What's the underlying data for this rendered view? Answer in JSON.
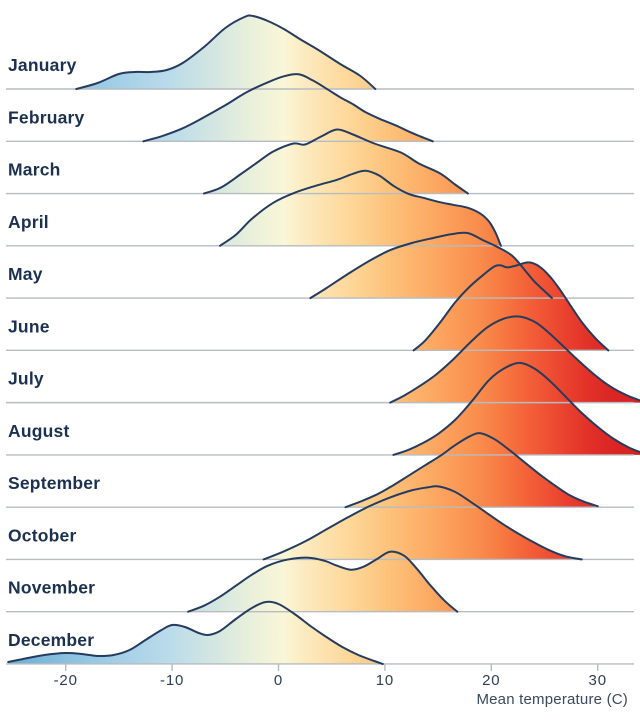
{
  "chart_data": {
    "type": "ridgeline",
    "title": "",
    "xlabel": "Mean temperature (C)",
    "x_domain": [
      -26,
      34
    ],
    "x_ticks": [
      -20,
      -10,
      0,
      10,
      20,
      30
    ],
    "grid": "one horizontal baseline per month, light gray",
    "legend": "none",
    "categories": [
      "January",
      "February",
      "March",
      "April",
      "May",
      "June",
      "July",
      "August",
      "September",
      "October",
      "November",
      "December"
    ],
    "value_note": "points are [temperature_C, density_height] pairs read off the chart; height in screen px above each month baseline (row spacing = 52)",
    "series": [
      {
        "name": "January",
        "points": [
          [
            -19,
            0
          ],
          [
            -17,
            6
          ],
          [
            -15,
            15
          ],
          [
            -13.5,
            17
          ],
          [
            -12,
            17
          ],
          [
            -10.5,
            19
          ],
          [
            -9,
            26
          ],
          [
            -7,
            42
          ],
          [
            -5,
            61
          ],
          [
            -3.2,
            72
          ],
          [
            -2.4,
            73
          ],
          [
            -1,
            68
          ],
          [
            0.5,
            60
          ],
          [
            2,
            50
          ],
          [
            3.9,
            38
          ],
          [
            5.8,
            25
          ],
          [
            7.7,
            13
          ],
          [
            9.1,
            0
          ]
        ]
      },
      {
        "name": "February",
        "points": [
          [
            -12.7,
            0
          ],
          [
            -11,
            5
          ],
          [
            -9,
            13
          ],
          [
            -7,
            24
          ],
          [
            -5,
            36
          ],
          [
            -3,
            49
          ],
          [
            -1,
            59
          ],
          [
            0.5,
            65
          ],
          [
            1.9,
            67
          ],
          [
            3.2,
            61
          ],
          [
            4.6,
            52
          ],
          [
            5.8,
            44
          ],
          [
            7,
            37
          ],
          [
            8.2,
            29
          ],
          [
            9.6,
            22
          ],
          [
            11,
            16
          ],
          [
            12.2,
            10
          ],
          [
            13.3,
            5
          ],
          [
            14.5,
            0
          ]
        ]
      },
      {
        "name": "March",
        "points": [
          [
            -7,
            0
          ],
          [
            -5.4,
            6
          ],
          [
            -3.6,
            19
          ],
          [
            -2,
            31
          ],
          [
            -0.5,
            42
          ],
          [
            1.4,
            50
          ],
          [
            2.5,
            49
          ],
          [
            4,
            57
          ],
          [
            5.5,
            64
          ],
          [
            7,
            59
          ],
          [
            9,
            50
          ],
          [
            11.5,
            41
          ],
          [
            13.2,
            30
          ],
          [
            15.2,
            20
          ],
          [
            16.6,
            9
          ],
          [
            17.8,
            0
          ]
        ]
      },
      {
        "name": "April",
        "points": [
          [
            -5.5,
            0
          ],
          [
            -4,
            11
          ],
          [
            -2.5,
            27
          ],
          [
            -0.5,
            43
          ],
          [
            1.5,
            53
          ],
          [
            3.5,
            60
          ],
          [
            5.5,
            66
          ],
          [
            7,
            72
          ],
          [
            8.2,
            75
          ],
          [
            9.5,
            70
          ],
          [
            10.8,
            60
          ],
          [
            12.2,
            52
          ],
          [
            13.6,
            48
          ],
          [
            15,
            44
          ],
          [
            16.4,
            41
          ],
          [
            17.8,
            38
          ],
          [
            19,
            32
          ],
          [
            19.8,
            24
          ],
          [
            20.4,
            13
          ],
          [
            20.9,
            0
          ]
        ]
      },
      {
        "name": "May",
        "points": [
          [
            3,
            0
          ],
          [
            4.5,
            10
          ],
          [
            6.5,
            24
          ],
          [
            8.5,
            37
          ],
          [
            10.5,
            48
          ],
          [
            12.5,
            55
          ],
          [
            14.5,
            60
          ],
          [
            16.3,
            64
          ],
          [
            17.8,
            65
          ],
          [
            19.2,
            58
          ],
          [
            20.6,
            51
          ],
          [
            22,
            42
          ],
          [
            23.3,
            26
          ],
          [
            24.1,
            16
          ],
          [
            25,
            7
          ],
          [
            25.7,
            0
          ]
        ]
      },
      {
        "name": "June",
        "points": [
          [
            12.7,
            0
          ],
          [
            13.8,
            10
          ],
          [
            15.2,
            28
          ],
          [
            16.6,
            48
          ],
          [
            18,
            64
          ],
          [
            19.3,
            76
          ],
          [
            20.3,
            84
          ],
          [
            20.9,
            85
          ],
          [
            21.5,
            83
          ],
          [
            22.4,
            85
          ],
          [
            23.5,
            88
          ],
          [
            24.5,
            84
          ],
          [
            25.5,
            74
          ],
          [
            26.5,
            60
          ],
          [
            27.5,
            44
          ],
          [
            28.6,
            27
          ],
          [
            29.8,
            12
          ],
          [
            31,
            0
          ]
        ]
      },
      {
        "name": "July",
        "points": [
          [
            10.5,
            0
          ],
          [
            11.8,
            7
          ],
          [
            13.2,
            16
          ],
          [
            14.8,
            28
          ],
          [
            16.4,
            43
          ],
          [
            18,
            60
          ],
          [
            19.6,
            75
          ],
          [
            21.2,
            84
          ],
          [
            22.7,
            86
          ],
          [
            24.2,
            80
          ],
          [
            25.6,
            68
          ],
          [
            27,
            54
          ],
          [
            28.4,
            40
          ],
          [
            29.8,
            27
          ],
          [
            31.2,
            16
          ],
          [
            32.6,
            8
          ],
          [
            34,
            2
          ]
        ]
      },
      {
        "name": "August",
        "points": [
          [
            10.8,
            0
          ],
          [
            12.2,
            5
          ],
          [
            13.6,
            12
          ],
          [
            15,
            21
          ],
          [
            16.6,
            35
          ],
          [
            18.2,
            54
          ],
          [
            19.8,
            75
          ],
          [
            21.3,
            87
          ],
          [
            22.7,
            92
          ],
          [
            24.1,
            86
          ],
          [
            25.5,
            74
          ],
          [
            27,
            58
          ],
          [
            28.5,
            42
          ],
          [
            30,
            28
          ],
          [
            31.5,
            16
          ],
          [
            33,
            7
          ],
          [
            34.2,
            2
          ]
        ]
      },
      {
        "name": "September",
        "points": [
          [
            6.3,
            0
          ],
          [
            7.8,
            6
          ],
          [
            9.3,
            13
          ],
          [
            10.8,
            22
          ],
          [
            12.3,
            32
          ],
          [
            13.8,
            42
          ],
          [
            15.3,
            52
          ],
          [
            16.6,
            62
          ],
          [
            18,
            71
          ],
          [
            19,
            74
          ],
          [
            20.3,
            68
          ],
          [
            21.6,
            58
          ],
          [
            23,
            46
          ],
          [
            24.4,
            34
          ],
          [
            25.8,
            23
          ],
          [
            27.2,
            13
          ],
          [
            28.6,
            6
          ],
          [
            30,
            1
          ]
        ]
      },
      {
        "name": "October",
        "points": [
          [
            -1.4,
            0
          ],
          [
            0.5,
            8
          ],
          [
            2.5,
            18
          ],
          [
            4.5,
            30
          ],
          [
            6.5,
            42
          ],
          [
            8.5,
            53
          ],
          [
            10.5,
            62
          ],
          [
            12.5,
            69
          ],
          [
            14,
            72
          ],
          [
            15,
            73
          ],
          [
            16.5,
            68
          ],
          [
            18,
            58
          ],
          [
            19.5,
            47
          ],
          [
            21,
            36
          ],
          [
            22.5,
            26
          ],
          [
            24,
            17
          ],
          [
            25.5,
            9
          ],
          [
            27,
            3
          ],
          [
            28.5,
            0
          ]
        ]
      },
      {
        "name": "November",
        "points": [
          [
            -8.5,
            0
          ],
          [
            -7,
            6
          ],
          [
            -5.5,
            15
          ],
          [
            -4,
            26
          ],
          [
            -2.5,
            37
          ],
          [
            -1,
            46
          ],
          [
            0.8,
            52
          ],
          [
            2.8,
            54
          ],
          [
            4.3,
            51
          ],
          [
            5.5,
            46
          ],
          [
            6.8,
            42
          ],
          [
            8,
            45
          ],
          [
            9.3,
            53
          ],
          [
            10.5,
            60
          ],
          [
            11.8,
            56
          ],
          [
            13,
            43
          ],
          [
            14.3,
            26
          ],
          [
            15.6,
            11
          ],
          [
            16.8,
            0
          ]
        ]
      },
      {
        "name": "December",
        "points": [
          [
            -25.4,
            2
          ],
          [
            -24,
            5
          ],
          [
            -22,
            9
          ],
          [
            -20,
            11
          ],
          [
            -18.5,
            10
          ],
          [
            -17,
            8
          ],
          [
            -15.5,
            9
          ],
          [
            -14,
            14
          ],
          [
            -12.5,
            24
          ],
          [
            -11,
            34
          ],
          [
            -10,
            39
          ],
          [
            -8.8,
            37
          ],
          [
            -7.5,
            31
          ],
          [
            -6.6,
            29
          ],
          [
            -5.5,
            33
          ],
          [
            -4,
            45
          ],
          [
            -2.5,
            56
          ],
          [
            -1.2,
            62
          ],
          [
            0,
            60
          ],
          [
            1.5,
            50
          ],
          [
            3,
            38
          ],
          [
            4.5,
            27
          ],
          [
            6,
            17
          ],
          [
            7.5,
            9
          ],
          [
            9,
            3
          ],
          [
            9.8,
            0
          ]
        ]
      }
    ],
    "colormap_temperature_to_fill": [
      [
        -26,
        "#68aad5"
      ],
      [
        -20,
        "#8ac0e0"
      ],
      [
        -15,
        "#a4cfe7"
      ],
      [
        -10,
        "#bcdcea"
      ],
      [
        -6,
        "#d4e6e1"
      ],
      [
        -3,
        "#e7efdc"
      ],
      [
        -1,
        "#f2f3d9"
      ],
      [
        0.5,
        "#faf6d7"
      ],
      [
        2,
        "#fcedc4"
      ],
      [
        4,
        "#fde3b1"
      ],
      [
        6,
        "#feda9f"
      ],
      [
        8,
        "#fdd08e"
      ],
      [
        10,
        "#fdc47e"
      ],
      [
        13,
        "#fdb26b"
      ],
      [
        16,
        "#fc9f5a"
      ],
      [
        19,
        "#f98b4c"
      ],
      [
        21,
        "#f77942"
      ],
      [
        23,
        "#f46539"
      ],
      [
        25,
        "#ef5334"
      ],
      [
        27,
        "#e9412e"
      ],
      [
        29,
        "#e23229"
      ],
      [
        31,
        "#dc2724"
      ],
      [
        34,
        "#d42120"
      ]
    ],
    "colors": {
      "curve_stroke": "#263c5e",
      "gridline": "#b6bcc1",
      "month_label_text": "#1c3150",
      "tick_label_text": "#2f3e52",
      "axis_title_text": "#3a495e",
      "background": "#ffffff"
    }
  },
  "axis": {
    "title": "Mean temperature (C)",
    "tick_labels": [
      "-20",
      "-10",
      "0",
      "10",
      "20",
      "30"
    ]
  }
}
